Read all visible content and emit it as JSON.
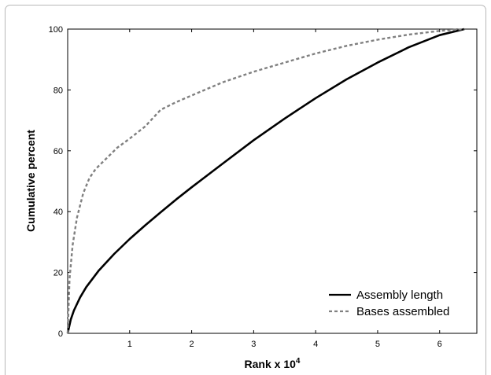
{
  "chart_data": {
    "type": "line",
    "xlabel": "Rank x 10",
    "xlabel_superscript": "4",
    "ylabel": "Cumulative percent",
    "xlim": [
      0,
      6.6
    ],
    "ylim": [
      0,
      100
    ],
    "xticks": [
      1,
      2,
      3,
      4,
      5,
      6
    ],
    "yticks": [
      0,
      20,
      40,
      60,
      80,
      100
    ],
    "grid": false,
    "legend_position": "bottom-right",
    "series": [
      {
        "name": "Assembly length",
        "style": "solid",
        "color": "#000000",
        "x": [
          0,
          0.05,
          0.1,
          0.2,
          0.3,
          0.5,
          0.75,
          1.0,
          1.25,
          1.5,
          1.75,
          2.0,
          2.5,
          3.0,
          3.5,
          4.0,
          4.5,
          5.0,
          5.5,
          6.0,
          6.4
        ],
        "y": [
          0,
          4.5,
          7.5,
          11.8,
          15.2,
          20.6,
          26.1,
          31.0,
          35.5,
          39.8,
          44.0,
          48.0,
          55.8,
          63.5,
          70.6,
          77.3,
          83.5,
          89.0,
          94.0,
          98.0,
          100
        ]
      },
      {
        "name": "Bases assembled",
        "style": "dashed",
        "color": "#808080",
        "x": [
          0,
          0.03,
          0.08,
          0.15,
          0.25,
          0.35,
          0.45,
          0.6,
          0.8,
          1.0,
          1.25,
          1.5,
          1.75,
          2.0,
          2.5,
          3.0,
          3.5,
          4.0,
          4.5,
          5.0,
          5.5,
          6.0,
          6.4
        ],
        "y": [
          0,
          18,
          29,
          38,
          46,
          51,
          54,
          57,
          61,
          64,
          68,
          73.5,
          76,
          78.2,
          82.5,
          86,
          89,
          92,
          94.5,
          96.5,
          98.2,
          99.4,
          100
        ]
      }
    ]
  }
}
